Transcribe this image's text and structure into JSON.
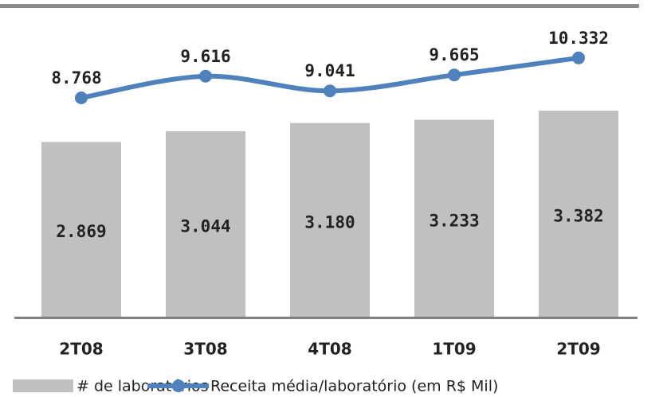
{
  "chart_data": {
    "type": "bar",
    "categories": [
      "2T08",
      "3T08",
      "4T08",
      "1T09",
      "2T09"
    ],
    "series": [
      {
        "name": "# de laboratórios",
        "type": "bar",
        "color": "#c0c0c0",
        "values": [
          2869,
          3044,
          3180,
          3233,
          3382
        ],
        "value_labels": [
          "2.869",
          "3.044",
          "3.180",
          "3.233",
          "3.382"
        ]
      },
      {
        "name": "Receita média/laboratório (em R$ Mil)",
        "type": "line",
        "axis": "y2",
        "color": "#4f81bd",
        "values": [
          8768,
          9616,
          9041,
          9665,
          10332
        ],
        "value_labels": [
          "8.768",
          "9.616",
          "9.041",
          "9.665",
          "10.332"
        ]
      }
    ],
    "ylim": [
      0,
      5200
    ],
    "y2lim": [
      200,
      12600
    ],
    "legend": "bottom"
  }
}
